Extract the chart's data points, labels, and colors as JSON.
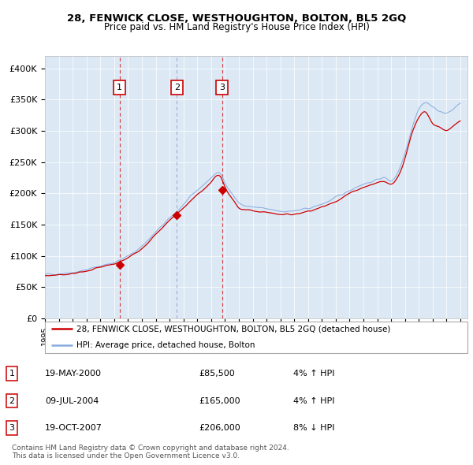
{
  "title1": "28, FENWICK CLOSE, WESTHOUGHTON, BOLTON, BL5 2GQ",
  "title2": "Price paid vs. HM Land Registry's House Price Index (HPI)",
  "ylim": [
    0,
    420000
  ],
  "yticks": [
    0,
    50000,
    100000,
    150000,
    200000,
    250000,
    300000,
    350000,
    400000
  ],
  "ytick_labels": [
    "£0",
    "£50K",
    "£100K",
    "£150K",
    "£200K",
    "£250K",
    "£300K",
    "£350K",
    "£400K"
  ],
  "bg_color": "#dce9f5",
  "line_color_red": "#cc0000",
  "line_color_blue": "#88aadd",
  "sale1_date": 2000.38,
  "sale1_price": 85500,
  "sale2_date": 2004.52,
  "sale2_price": 165000,
  "sale3_date": 2007.8,
  "sale3_price": 206000,
  "legend_red": "28, FENWICK CLOSE, WESTHOUGHTON, BOLTON, BL5 2GQ (detached house)",
  "legend_blue": "HPI: Average price, detached house, Bolton",
  "table_data": [
    [
      "1",
      "19-MAY-2000",
      "£85,500",
      "4% ↑ HPI"
    ],
    [
      "2",
      "09-JUL-2004",
      "£165,000",
      "4% ↑ HPI"
    ],
    [
      "3",
      "19-OCT-2007",
      "£206,000",
      "8% ↓ HPI"
    ]
  ],
  "footer": "Contains HM Land Registry data © Crown copyright and database right 2024.\nThis data is licensed under the Open Government Licence v3.0."
}
